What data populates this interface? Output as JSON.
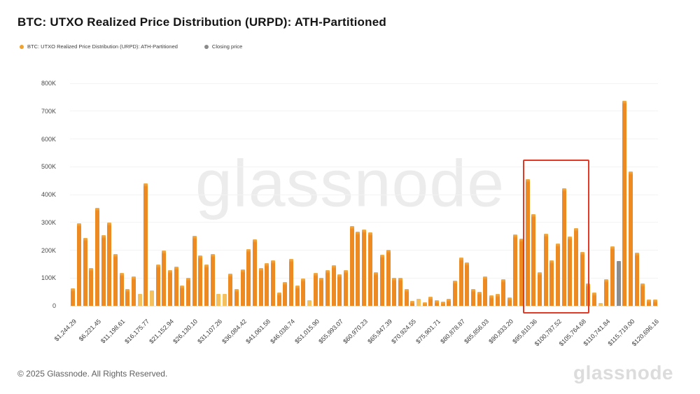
{
  "title": "BTC: UTXO Realized Price Distribution (URPD): ATH-Partitioned",
  "legend": [
    {
      "label": "BTC: UTXO Realized Price Distribution (URPD): ATH-Partitioned",
      "color": "#f0a22e"
    },
    {
      "label": "Closing price",
      "color": "#8a8a8a"
    }
  ],
  "watermark": "glassnode",
  "footer": {
    "copyright": "© 2025 Glassnode. All Rights Reserved.",
    "brand": "glassnode"
  },
  "chart_data": {
    "type": "bar",
    "title": "BTC: UTXO Realized Price Distribution (URPD): ATH-Partitioned",
    "ylabel": "",
    "xlabel": "",
    "ylim": [
      0,
      800000
    ],
    "y_ticks": [
      "0",
      "100K",
      "200K",
      "300K",
      "400K",
      "500K",
      "600K",
      "700K",
      "800K"
    ],
    "grid": true,
    "legend_position": "top-left",
    "values_unit": "BTC (thousands), estimated from axis",
    "x_tick_every": 4,
    "x_tick_labels": [
      "$1,244.29",
      "$6,221.45",
      "$11,198.61",
      "$16,175.77",
      "$21,152.94",
      "$26,130.10",
      "$31,107.26",
      "$36,084.42",
      "$41,061.58",
      "$46,038.74",
      "$51,015.90",
      "$55,993.07",
      "$60,970.23",
      "$65,947.39",
      "$70,924.55",
      "$75,901.71",
      "$80,878.87",
      "$85,856.03",
      "$90,833.20",
      "$95,810.36",
      "$100,787.52",
      "$105,764.68",
      "$110,741.84",
      "$115,719.00",
      "$120,696.16"
    ],
    "values_k": [
      64,
      297,
      245,
      135,
      351,
      253,
      300,
      185,
      118,
      60,
      105,
      44,
      440,
      55,
      149,
      200,
      128,
      141,
      74,
      101,
      251,
      181,
      148,
      187,
      43,
      43,
      116,
      60,
      131,
      204,
      240,
      135,
      153,
      164,
      47,
      86,
      169,
      72,
      97,
      19,
      118,
      100,
      128,
      145,
      114,
      128,
      286,
      267,
      275,
      265,
      120,
      183,
      202,
      101,
      100,
      61,
      18,
      26,
      13,
      33,
      19,
      15,
      25,
      91,
      173,
      156,
      60,
      50,
      106,
      39,
      43,
      95,
      30,
      257,
      242,
      455,
      330,
      120,
      258,
      164,
      223,
      422,
      248,
      279,
      194,
      80,
      49,
      10,
      95,
      215,
      160,
      737,
      483,
      190,
      80,
      22,
      22
    ],
    "light_bar_indices": [
      11,
      13,
      24,
      25,
      39,
      57,
      87
    ],
    "closing_price_bar": {
      "index": 90,
      "value_k": 160,
      "color": "#8d8d8d"
    },
    "highlight_box": {
      "start_index": 75,
      "end_index": 84,
      "top_value_k": 525,
      "color": "#e13b28"
    },
    "bar_color": "#ee8a22",
    "bar_top_color": "#f2b14d",
    "bar_light_color": "#f5c05e"
  }
}
